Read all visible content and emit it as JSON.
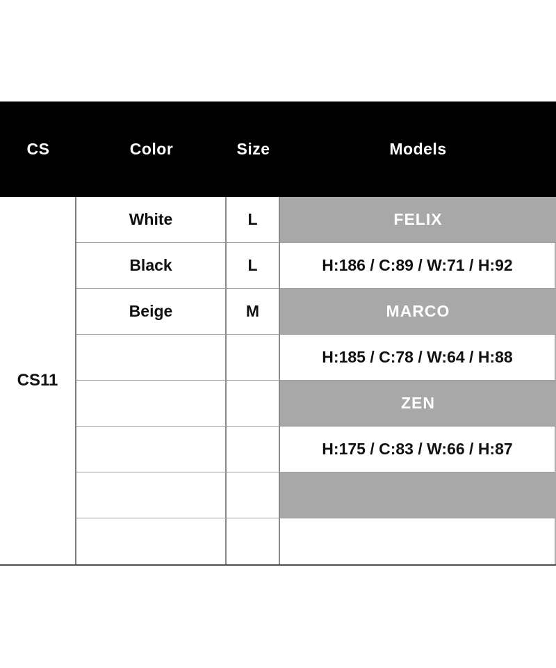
{
  "table": {
    "header": {
      "cs": "CS",
      "color": "Color",
      "size": "Size",
      "models": "Models"
    },
    "cs_value": "CS11",
    "rows": [
      {
        "color": "White",
        "size": "L",
        "model": "FELIX"
      },
      {
        "color": "Black",
        "size": "L",
        "model": "H:186 / C:89 / W:71 / H:92"
      },
      {
        "color": "Beige",
        "size": "M",
        "model": "MARCO"
      },
      {
        "color": "",
        "size": "",
        "model": "H:185 / C:78 / W:64 / H:88"
      },
      {
        "color": "",
        "size": "",
        "model": "ZEN"
      },
      {
        "color": "",
        "size": "",
        "model": "H:175 / C:83 / W:66 / H:87"
      },
      {
        "color": "",
        "size": "",
        "model": ""
      },
      {
        "color": "",
        "size": "",
        "model": ""
      }
    ],
    "colors": {
      "header_bg": "#000000",
      "header_text": "#ffffff",
      "model_name_bg": "#a8a8a8",
      "model_name_text": "#ffffff",
      "body_text": "#111111",
      "grid_line": "#9a9a9a"
    }
  }
}
